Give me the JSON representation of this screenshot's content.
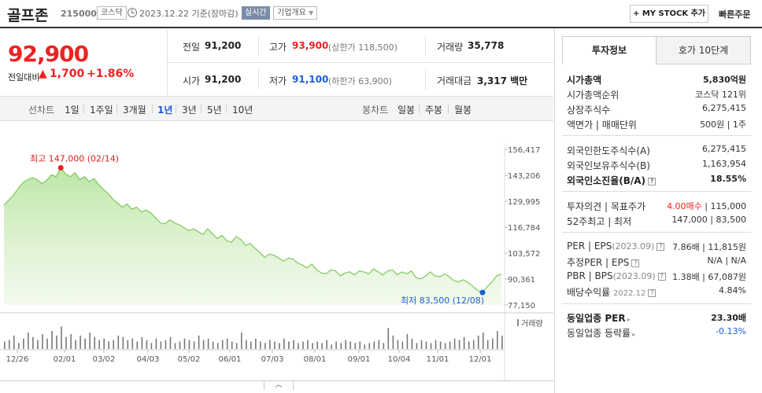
{
  "header": {
    "name": "골프존",
    "code": "215000",
    "market": "코스닥",
    "date": "2023.12.22 기준(장마감)",
    "live": "실시간",
    "company_info": "기업개요",
    "my_stock": "+ MY STOCK 추가",
    "quick_order": "빠른주문"
  },
  "price": {
    "current": "92,900",
    "change_label": "전일대비",
    "change_arrow": "▲",
    "change_value": "1,700",
    "change_pct": "+1.86%"
  },
  "stats": {
    "prev_label": "전일",
    "prev": "91,200",
    "high_label": "고가",
    "high": "93,900",
    "upper_limit": "(상한가 118,500)",
    "volume_label": "거래량",
    "volume": "35,778",
    "open_label": "시가",
    "open": "91,200",
    "low_label": "저가",
    "low": "91,100",
    "lower_limit": "(하한가 63,900)",
    "amount_label": "거래대금",
    "amount": "3,317 백만"
  },
  "range_bar": {
    "line_label": "선차트",
    "line_options": [
      "1일",
      "1주일",
      "3개월",
      "1년",
      "3년",
      "5년",
      "10년"
    ],
    "selected": "1년",
    "candle_label": "봉차트",
    "candle_options": [
      "일봉",
      "주봉",
      "월봉"
    ]
  },
  "chart_data": {
    "type": "area",
    "y_ticks": [
      "156,417",
      "143,206",
      "129,995",
      "116,784",
      "103,572",
      "90,361",
      "77,150"
    ],
    "ylim": [
      77150,
      156417
    ],
    "x_ticks": [
      "12/26",
      "02/01",
      "03/02",
      "04/03",
      "05/02",
      "06/01",
      "07/03",
      "08/01",
      "09/01",
      "10/04",
      "11/01",
      "12/01"
    ],
    "high_annotation": "최고 147,000 (02/14)",
    "low_annotation": "최저 83,500 (12/08)",
    "high": 147000,
    "low": 83500,
    "volume_label": "거래량",
    "price_series": [
      128000,
      130500,
      133000,
      136500,
      139500,
      141000,
      142000,
      141000,
      139000,
      140500,
      143500,
      142500,
      147000,
      144000,
      142500,
      144500,
      141000,
      142500,
      140000,
      141500,
      138500,
      136000,
      134000,
      131000,
      129000,
      127000,
      128500,
      126000,
      127000,
      124500,
      125500,
      124000,
      121500,
      119000,
      118500,
      120500,
      119000,
      118000,
      116500,
      115000,
      116000,
      114500,
      113000,
      116000,
      113500,
      111000,
      112500,
      110000,
      109000,
      112000,
      110500,
      107500,
      108500,
      106000,
      104000,
      101500,
      103000,
      102500,
      101000,
      99500,
      101000,
      100500,
      98500,
      97500,
      96000,
      98000,
      95000,
      93500,
      93000,
      95000,
      94500,
      92000,
      93500,
      94000,
      92500,
      94500,
      94000,
      93000,
      95500,
      94000,
      92500,
      94500,
      95000,
      92500,
      94000,
      93000,
      94500,
      91000,
      90500,
      92000,
      94000,
      92000,
      91500,
      93000,
      91500,
      89500,
      89000,
      90000,
      88500,
      86500,
      84500,
      83500,
      86500,
      89000,
      92000,
      92900
    ],
    "volume_series": [
      0.25,
      0.3,
      0.45,
      0.2,
      0.35,
      0.55,
      0.4,
      0.3,
      0.5,
      0.35,
      0.6,
      0.45,
      0.75,
      0.4,
      0.5,
      0.3,
      0.45,
      0.35,
      0.55,
      0.4,
      0.3,
      0.35,
      0.25,
      0.3,
      0.45,
      0.4,
      0.3,
      0.35,
      0.25,
      0.4,
      0.3,
      0.2,
      0.35,
      0.25,
      0.3,
      0.4,
      0.2,
      0.25,
      0.35,
      0.3,
      0.25,
      0.45,
      0.3,
      0.35,
      0.25,
      0.2,
      0.3,
      0.35,
      0.25,
      0.2,
      0.55,
      0.3,
      0.25,
      0.35,
      0.25,
      0.2,
      0.3,
      0.25,
      0.2,
      0.35,
      0.25,
      0.3,
      0.2,
      0.25,
      0.3,
      0.2,
      0.25,
      0.2,
      0.3,
      0.15,
      0.25,
      0.2,
      0.3,
      0.25,
      0.2,
      0.25,
      0.15,
      0.2,
      0.25,
      0.3,
      0.2,
      0.7,
      0.45,
      0.3,
      0.25,
      0.5,
      0.35,
      0.2,
      0.3,
      0.25,
      0.2,
      0.3,
      0.25,
      0.2,
      0.25,
      0.35,
      0.3,
      0.4,
      0.25,
      0.3,
      0.45,
      0.55,
      0.3,
      0.35,
      0.6,
      0.45
    ],
    "line_color": "#7ec85a",
    "fill_color": "#b9e4a0"
  },
  "panel": {
    "tab_invest": "투자정보",
    "tab_quote": "호가 10단계",
    "market_cap_label": "시가총액",
    "market_cap": "5,830억원",
    "market_cap_rank_label": "시가총액순위",
    "market_cap_rank": "코스닥 121위",
    "shares_label": "상장주식수",
    "shares": "6,275,415",
    "face_label": "액면가 | 매매단위",
    "face": "500원 | 1주",
    "foreign_limit_label": "외국인한도주식수(A)",
    "foreign_limit": "6,275,415",
    "foreign_hold_label": "외국인보유주식수(B)",
    "foreign_hold": "1,163,954",
    "foreign_ratio_label": "외국인소진율(B/A)",
    "foreign_ratio": "18.55%",
    "opinion_label": "투자의견 | 목표주가",
    "opinion": "4.00매수",
    "target": "| 115,000",
    "w52_label": "52주최고 | 최저",
    "w52": "147,000 | 83,500",
    "per_label": "PER | EPS",
    "per_period": "(2023.09)",
    "per": "7.86배 | 11,815원",
    "est_per_label": "추정PER | EPS",
    "est_per": "N/A | N/A",
    "pbr_label": "PBR | BPS",
    "pbr_period": "(2023.09)",
    "pbr": "1.38배 | 67,087원",
    "dividend_label": "배당수익률",
    "dividend_period": "2022.12",
    "dividend": "4.84%",
    "sector_per_label": "동일업종 PER",
    "sector_per": "23.30배",
    "sector_change_label": "동일업종 등락률",
    "sector_change": "-0.13%"
  },
  "colors": {
    "up": "#e22222",
    "down": "#1a5ed8",
    "accent": "#1a5ed8"
  }
}
